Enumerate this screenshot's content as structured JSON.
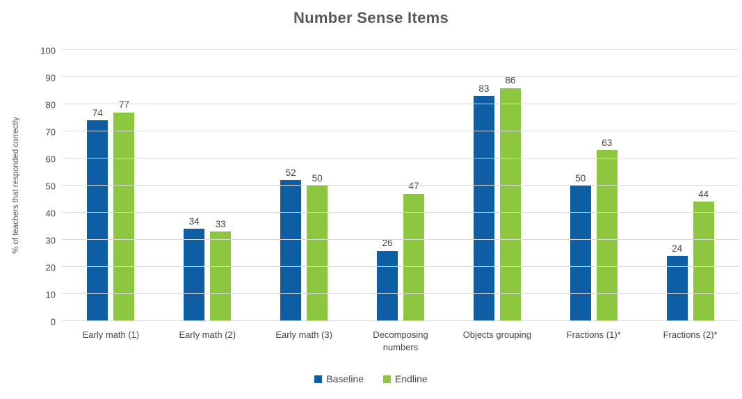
{
  "chart_data": {
    "type": "bar",
    "title": "Number Sense Items",
    "ylabel": "% of teachers that responded correctly",
    "xlabel": "",
    "categories": [
      "Early math (1)",
      "Early math (2)",
      "Early math (3)",
      "Decomposing numbers",
      "Objects grouping",
      "Fractions (1)*",
      "Fractions (2)*"
    ],
    "series": [
      {
        "name": "Baseline",
        "color": "#0D5EA5",
        "values": [
          74,
          34,
          52,
          26,
          83,
          50,
          24
        ]
      },
      {
        "name": "Endline",
        "color": "#8CC63E",
        "values": [
          77,
          33,
          50,
          47,
          86,
          63,
          44
        ]
      }
    ],
    "ylim": [
      0,
      100
    ],
    "ytick_step": 10,
    "grid": true,
    "legend_position": "bottom",
    "data_labels": true
  },
  "colors": {
    "baseline_bar": "#0D5EA5",
    "endline_bar": "#8CC63E",
    "gridline": "#D9D9D9",
    "axis_text": "#454545",
    "title_text": "#58585A",
    "background": "#FFFFFF"
  }
}
